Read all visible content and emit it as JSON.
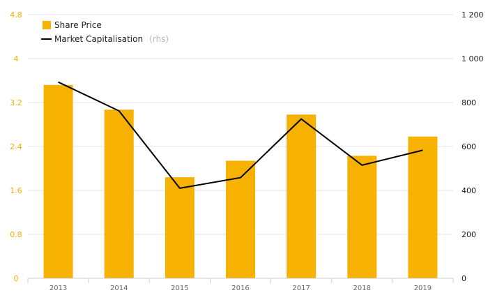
{
  "chart_data": {
    "type": "bar",
    "categories": [
      "2013",
      "2014",
      "2015",
      "2016",
      "2017",
      "2018",
      "2019"
    ],
    "series": [
      {
        "name": "Share Price",
        "type": "bar",
        "axis": "left",
        "color": "#f7b100",
        "values": [
          3.52,
          3.07,
          1.84,
          2.14,
          2.98,
          2.23,
          2.58
        ]
      },
      {
        "name": "Market Capitalisation",
        "type": "line",
        "axis": "right",
        "color": "#000000",
        "values": [
          893,
          762,
          410,
          458,
          725,
          515,
          583
        ]
      }
    ],
    "legend": {
      "items": [
        {
          "label": "Share Price",
          "note": ""
        },
        {
          "label": "Market Capitalisation",
          "note": "(rhs)"
        }
      ],
      "placement": "top-left"
    },
    "y_left": {
      "ylim": [
        0,
        4.8
      ],
      "ticks": [
        0,
        0.8,
        1.6,
        2.4,
        3.2,
        4,
        4.8
      ],
      "tick_labels": [
        "0",
        "0.8",
        "1.6",
        "2.4",
        "3.2",
        "4",
        "4.8"
      ]
    },
    "y_right": {
      "ylim": [
        0,
        1200
      ],
      "ticks": [
        0,
        200,
        400,
        600,
        800,
        1000,
        1200
      ],
      "tick_labels": [
        "0",
        "200",
        "400",
        "600",
        "800",
        "1 000",
        "1 200"
      ]
    },
    "grid": true,
    "colors": {
      "bar": "#f7b100",
      "line": "#000000",
      "left_axis": "#f5b000",
      "grid": "#e6e6e6"
    }
  }
}
